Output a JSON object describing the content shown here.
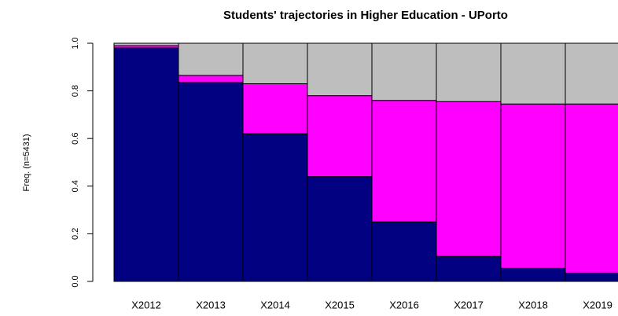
{
  "chart_data": {
    "type": "stacked_bar",
    "title": "Students' trajectories in Higher Education - UPorto",
    "ylabel": "Freq. (n=5431)",
    "categories": [
      "X2012",
      "X2013",
      "X2014",
      "X2015",
      "X2016",
      "X2017",
      "X2018",
      "X2019"
    ],
    "series": [
      {
        "color": "#000080",
        "values": [
          0.98,
          0.835,
          0.62,
          0.44,
          0.25,
          0.105,
          0.055,
          0.035
        ]
      },
      {
        "color": "#ff00ff",
        "values": [
          0.01,
          0.03,
          0.21,
          0.34,
          0.51,
          0.65,
          0.69,
          0.71
        ]
      },
      {
        "color": "#bebebe",
        "values": [
          0.01,
          0.135,
          0.17,
          0.22,
          0.24,
          0.245,
          0.255,
          0.255
        ]
      }
    ],
    "ylim": [
      0,
      1
    ],
    "yticks": [
      {
        "value": 0,
        "label": "0.0"
      },
      0.2,
      0.4,
      0.6,
      0.8,
      {
        "value": 1,
        "label": "1.0"
      }
    ]
  }
}
